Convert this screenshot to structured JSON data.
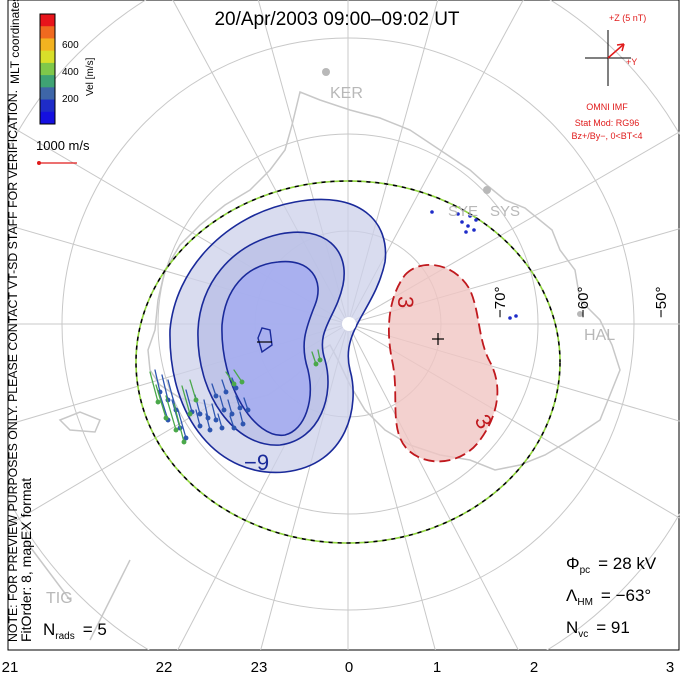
{
  "title": "20/Apr/2003 09:00–09:02 UT",
  "colorbar": {
    "title": "Vel [m/s]",
    "ticks": [
      "600",
      "400",
      "200"
    ],
    "colors": [
      "#e8141b",
      "#f06a1f",
      "#f3b320",
      "#d8df2a",
      "#7fc84a",
      "#3fa374",
      "#3e66a8",
      "#1e2cc8",
      "#1510e0"
    ]
  },
  "coord_label": "MLT coordinates",
  "ref_vector_label": "1000 m/s",
  "watermark": "NOTE: FOR PREVIEW PURPOSES ONLY. PLEASE CONTACT VT-SD STAFF FOR VERIFICATION.",
  "fit_order": "FitOrder: 8, mapEX format",
  "imf": {
    "z_label": "+Z (5 nT)",
    "y_label": "+Y",
    "source": "OMNI IMF",
    "model": "Stat Mod: RG96",
    "condition": "Bz+/By−, 0<BT<4",
    "color": "#e01b1b"
  },
  "stations": [
    "KER",
    "SYE",
    "SYS",
    "HAL",
    "TIG"
  ],
  "lat_labels": [
    "−70°",
    "−60°",
    "−50°"
  ],
  "contours": {
    "negative_label": "−9",
    "positive_label_top": "3",
    "positive_label_bottom": "3",
    "negative_color": "#1a2a9a",
    "positive_color": "#c0191e"
  },
  "stats": {
    "phi_pc_label": "Φ",
    "phi_pc_sub": "pc",
    "phi_pc_value": "= 28 kV",
    "lambda_hm_label": "Λ",
    "lambda_hm_sub": "HM",
    "lambda_hm_value": "= −63°",
    "nvc_label": "N",
    "nvc_sub": "vc",
    "nvc_value": "= 91",
    "nrads_label": "N",
    "nrads_sub": "rads",
    "nrads_value": "= 5"
  },
  "mlt_ticks": [
    "21",
    "22",
    "23",
    "0",
    "1",
    "2",
    "3"
  ]
}
